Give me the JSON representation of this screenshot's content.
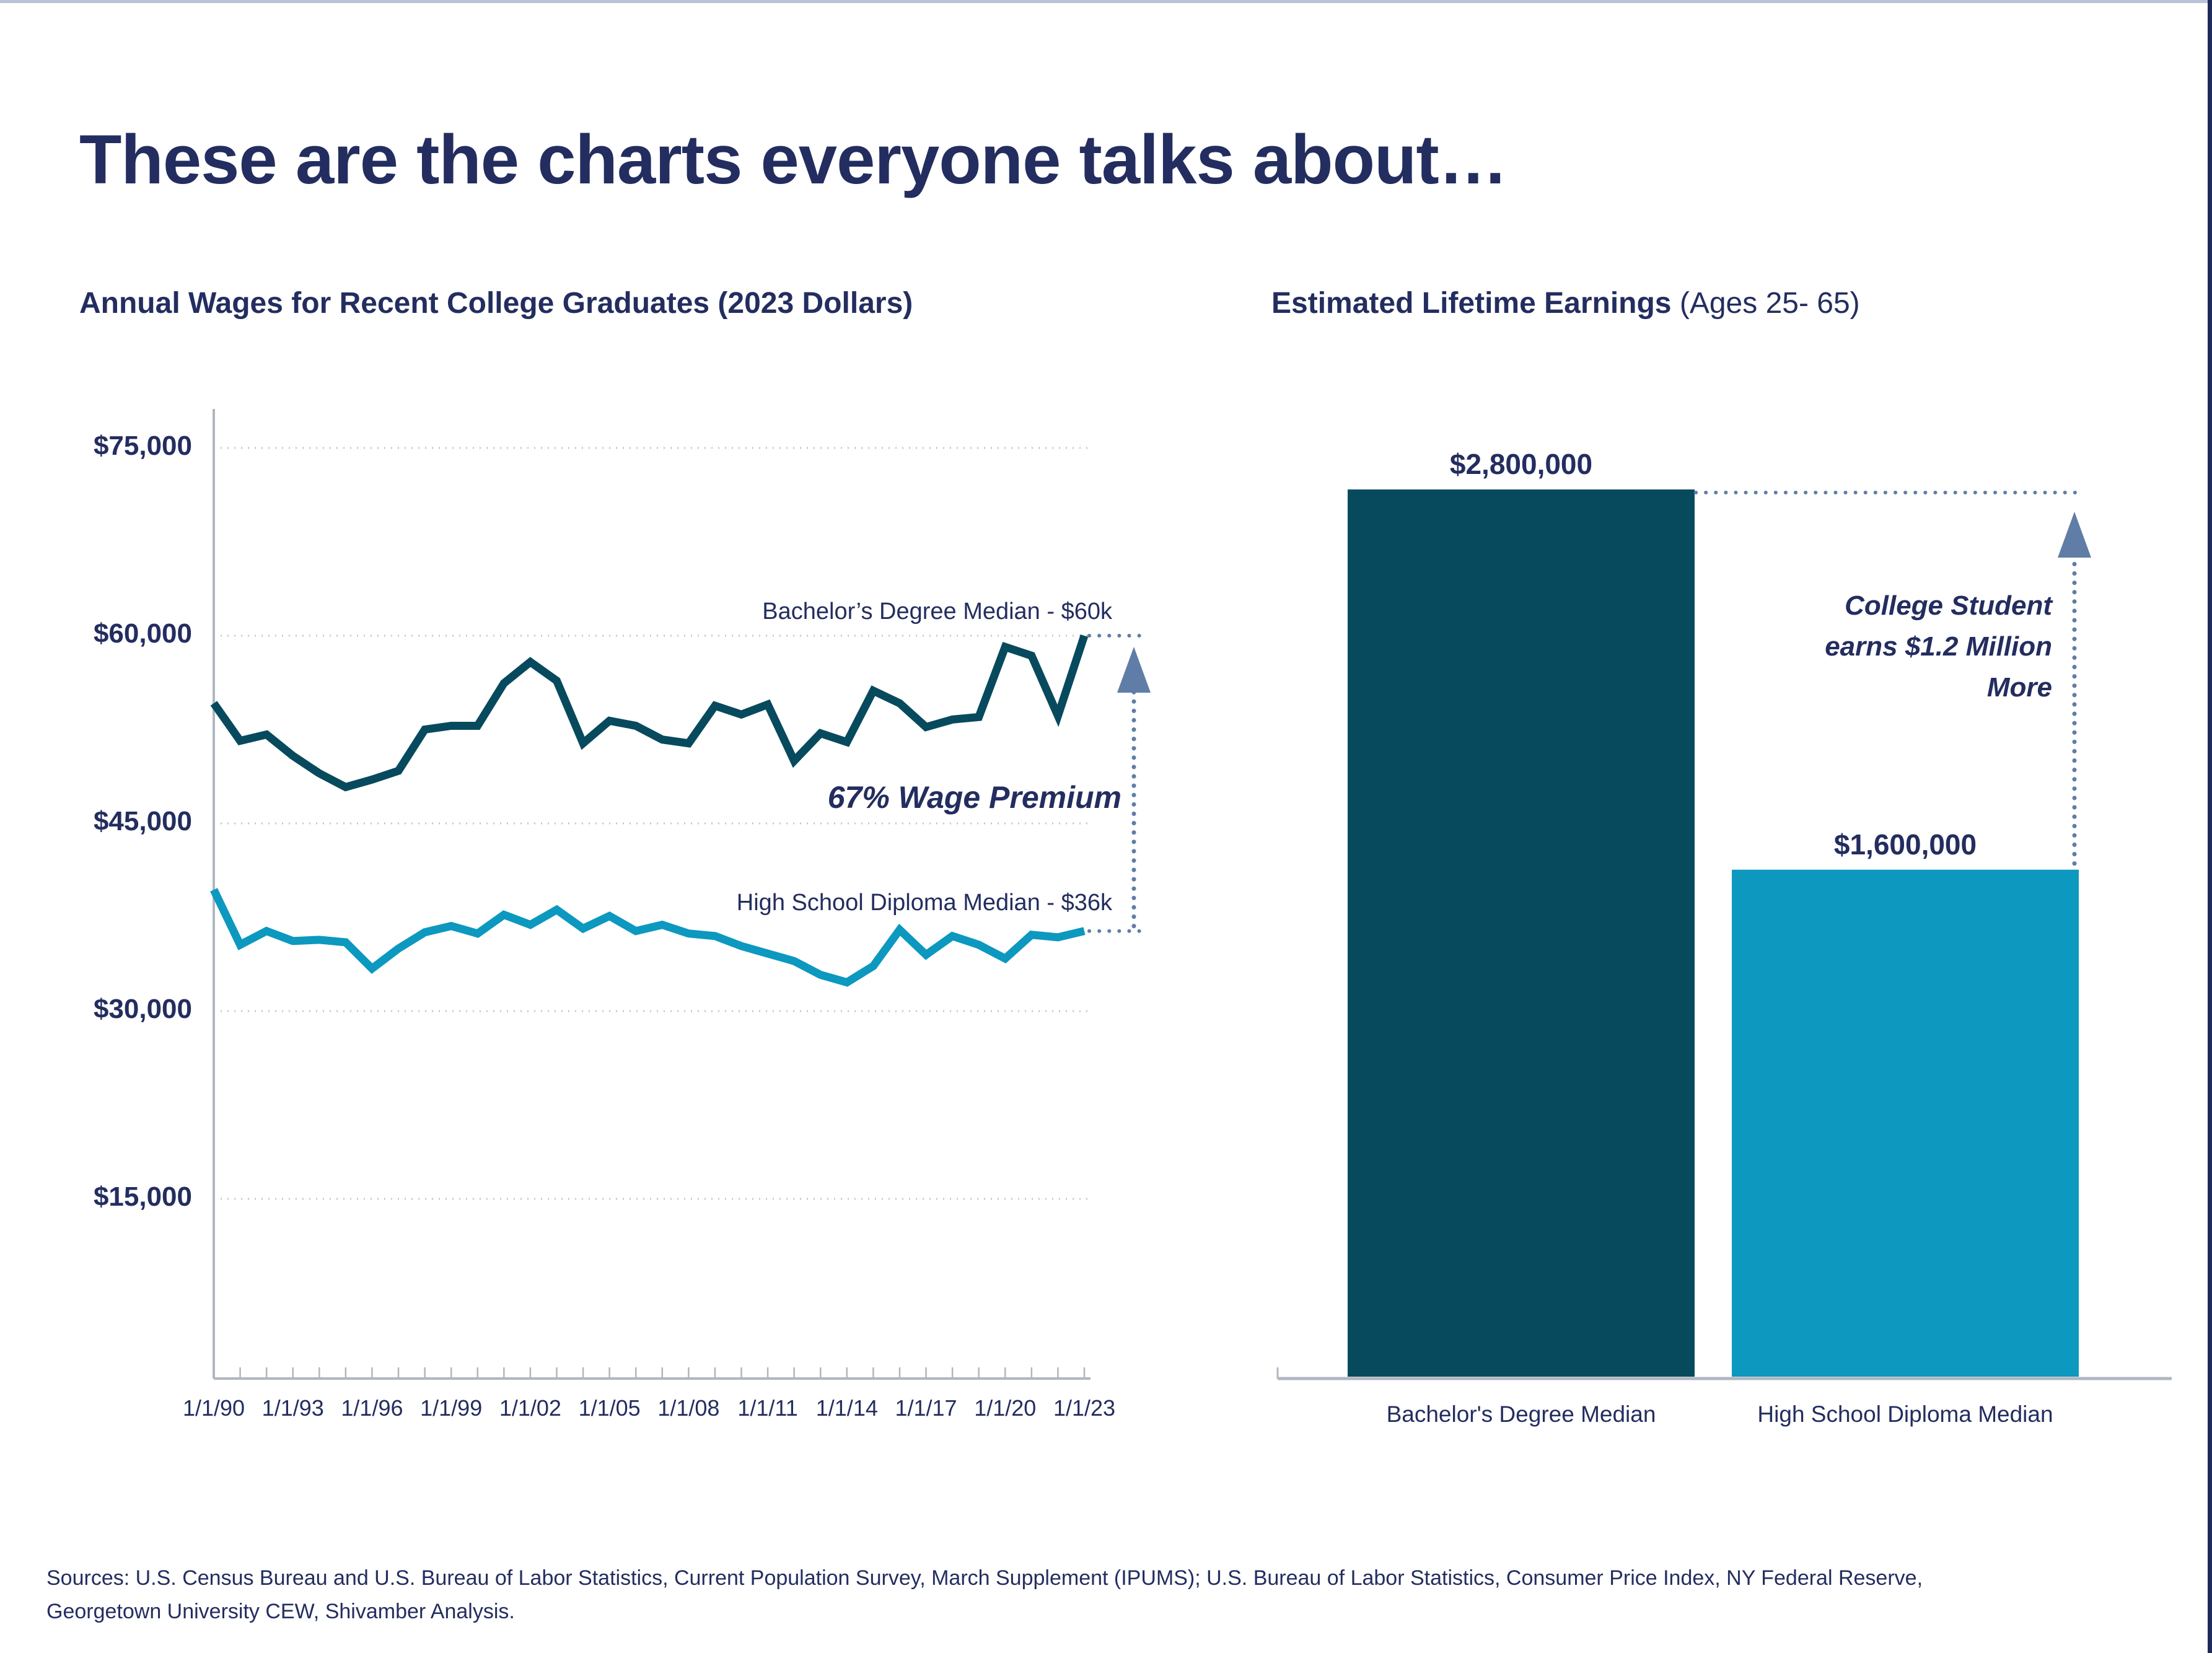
{
  "header": {
    "title": "These are the charts everyone talks about…"
  },
  "colors": {
    "navy": "#232d5f",
    "dark_teal": "#074a5d",
    "light_blue": "#0c98bf",
    "arrow_blue": "#5f7da6",
    "grid": "#c6c6c6",
    "axis": "#b0b6c0",
    "top_border": "#b9c4d9",
    "right_border": "#1e2a5a"
  },
  "left_chart": {
    "title": "Annual Wages for Recent College Graduates (2023 Dollars)",
    "bachelor_label": "Bachelor’s Degree Median - $60k",
    "premium_label": "67% Wage Premium",
    "hs_label": "High School Diploma Median - $36k"
  },
  "right_chart": {
    "title_bold": "Estimated Lifetime Earnings",
    "title_tail": " (Ages 25- 65)",
    "annotation": "College Student earns $1.2 Million More",
    "bar1_value_label": "$2,800,000",
    "bar2_value_label": "$1,600,000",
    "bar1_label": "Bachelor's Degree Median",
    "bar2_label": "High School Diploma Median"
  },
  "footer": {
    "sources": "Sources: U.S. Census Bureau and U.S. Bureau of Labor Statistics, Current Population Survey, March Supplement (IPUMS); U.S. Bureau of Labor Statistics, Consumer Price Index, NY Federal Reserve, Georgetown University CEW, Shivamber Analysis."
  },
  "chart_data": [
    {
      "type": "line",
      "title": "Annual Wages for Recent College Graduates (2023 Dollars)",
      "xlabel": "",
      "ylabel": "",
      "ylim": [
        0,
        78000
      ],
      "grid": "horizontal-dotted",
      "x_years": [
        1990,
        1991,
        1992,
        1993,
        1994,
        1995,
        1996,
        1997,
        1998,
        1999,
        2000,
        2001,
        2002,
        2003,
        2004,
        2005,
        2006,
        2007,
        2008,
        2009,
        2010,
        2011,
        2012,
        2013,
        2014,
        2015,
        2016,
        2017,
        2018,
        2019,
        2020,
        2021,
        2022,
        2023
      ],
      "x_tick_labels": [
        {
          "i": 0,
          "label": "1/1/90"
        },
        {
          "i": 3,
          "label": "1/1/93"
        },
        {
          "i": 6,
          "label": "1/1/96"
        },
        {
          "i": 9,
          "label": "1/1/99"
        },
        {
          "i": 12,
          "label": "1/1/02"
        },
        {
          "i": 15,
          "label": "1/1/05"
        },
        {
          "i": 18,
          "label": "1/1/08"
        },
        {
          "i": 21,
          "label": "1/1/11"
        },
        {
          "i": 24,
          "label": "1/1/14"
        },
        {
          "i": 27,
          "label": "1/1/17"
        },
        {
          "i": 30,
          "label": "1/1/20"
        },
        {
          "i": 33,
          "label": "1/1/23"
        }
      ],
      "yticks": [
        {
          "value": 15000,
          "label": "$15,000"
        },
        {
          "value": 30000,
          "label": "$30,000"
        },
        {
          "value": 45000,
          "label": "$45,000"
        },
        {
          "value": 60000,
          "label": "$60,000"
        },
        {
          "value": 75000,
          "label": "$75,000"
        }
      ],
      "series": [
        {
          "name": "Bachelor's Degree Median",
          "color": "#074a5d",
          "end_label": "Bachelor’s Degree Median - $60k",
          "values": [
            54600,
            51600,
            52100,
            50400,
            49000,
            47900,
            48500,
            49200,
            52500,
            52800,
            52800,
            56200,
            57900,
            56400,
            51400,
            53200,
            52800,
            51700,
            51400,
            54400,
            53700,
            54500,
            50000,
            52200,
            51500,
            55600,
            54600,
            52700,
            53300,
            53500,
            59100,
            58400,
            53600,
            60000
          ]
        },
        {
          "name": "High School Diploma Median",
          "color": "#0c98bf",
          "end_label": "High School Diploma Median - $36k",
          "values": [
            39700,
            35300,
            36400,
            35600,
            35700,
            35500,
            33400,
            35000,
            36300,
            36800,
            36200,
            37700,
            36900,
            38100,
            36600,
            37600,
            36400,
            36900,
            36200,
            36000,
            35200,
            34600,
            34000,
            32900,
            32300,
            33600,
            36500,
            34500,
            36000,
            35300,
            34200,
            36100,
            35900,
            36400
          ]
        }
      ],
      "annotations": [
        "67% Wage Premium"
      ]
    },
    {
      "type": "bar",
      "title": "Estimated Lifetime Earnings (Ages 25- 65)",
      "categories": [
        "Bachelor's Degree Median",
        "High School Diploma Median"
      ],
      "values": [
        2800000,
        1600000
      ],
      "value_labels": [
        "$2,800,000",
        "$1,600,000"
      ],
      "colors": [
        "#074a5d",
        "#0c98bf"
      ],
      "ylim": [
        0,
        2800000
      ],
      "annotations": [
        "College Student earns $1.2 Million More"
      ]
    }
  ]
}
